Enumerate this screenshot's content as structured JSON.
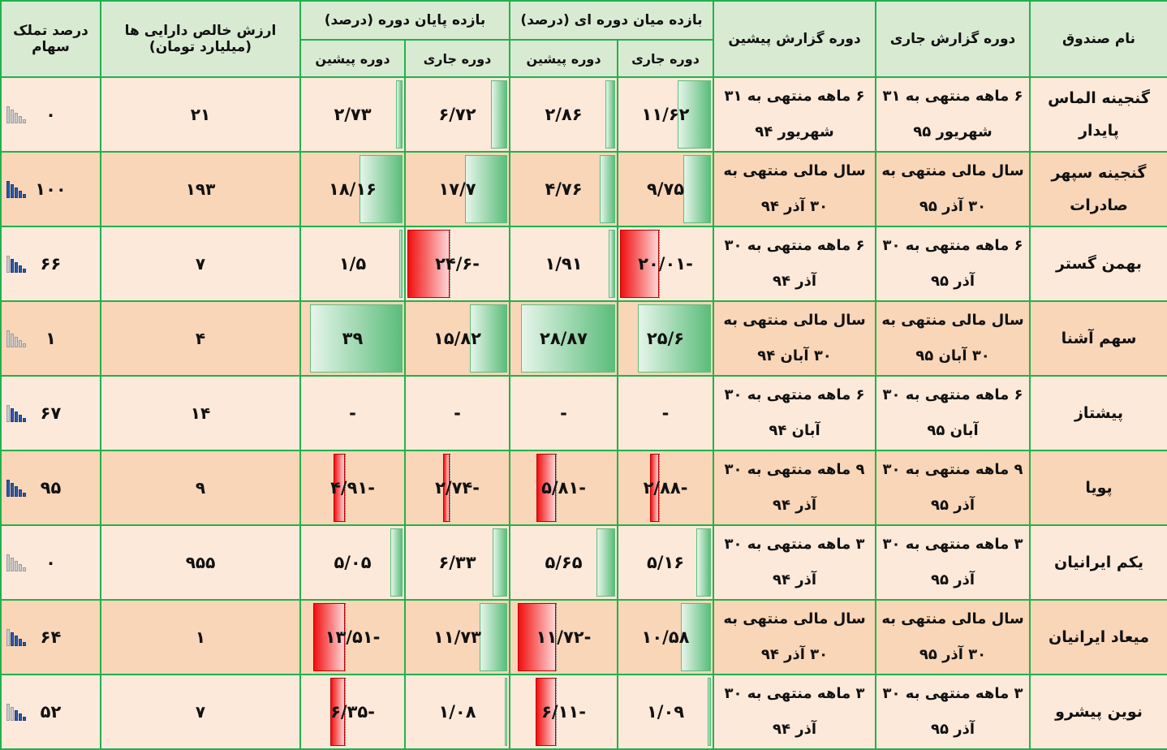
{
  "headers": {
    "fund_name": "نام صندوق",
    "current_period": "دوره گزارش جاری",
    "previous_period": "دوره گزارش پیشین",
    "interim_return": "بازده میان دوره ای (درصد)",
    "end_return": "بازده پایان دوره (درصد)",
    "current": "دوره جاری",
    "previous": "دوره پیشین",
    "nav": "ارزش خالص دارایی ها (میلیارد تومان)",
    "stock_ownership": "درصد تملک سهام"
  },
  "colors": {
    "grid": "#22b14c",
    "header_bg": "#d9ead3",
    "row_light": "#fce9da",
    "row_dark": "#f9d6b8",
    "positive_bar": "#5bbd7b",
    "negative_bar": "#f01010"
  },
  "rows": [
    {
      "name": "گنجینه الماس پایدار",
      "cur_period": "۶ ماهه منتهی به ۳۱ شهریور ۹۵",
      "prev_period": "۶ ماهه منتهی به ۳۱ شهریور ۹۴",
      "mid_cur": "۱۱/۶۲",
      "mid_cur_v": 11.62,
      "mid_prev": "۲/۸۶",
      "mid_prev_v": 2.86,
      "end_cur": "۶/۷۲",
      "end_cur_v": 6.72,
      "end_prev": "۲/۷۳",
      "end_prev_v": 2.73,
      "nav": "۲۱",
      "own": "۰",
      "own_level": 0
    },
    {
      "name": "گنجینه سپهر صادرات",
      "cur_period": "سال مالی منتهی به ۳۰ آذر ۹۵",
      "prev_period": "سال مالی منتهی به ۳۰ آذر ۹۴",
      "mid_cur": "۹/۷۵",
      "mid_cur_v": 9.75,
      "mid_prev": "۴/۷۶",
      "mid_prev_v": 4.76,
      "end_cur": "۱۷/۷",
      "end_cur_v": 17.7,
      "end_prev": "۱۸/۱۶",
      "end_prev_v": 18.16,
      "nav": "۱۹۳",
      "own": "۱۰۰",
      "own_level": 5
    },
    {
      "name": "بهمن گستر",
      "cur_period": "۶ ماهه منتهی به ۳۰ آذر ۹۵",
      "prev_period": "۶ ماهه منتهی به ۳۰ آذر ۹۴",
      "mid_cur": "-۲۰/۰۱",
      "mid_cur_v": -20.01,
      "mid_prev": "۱/۹۱",
      "mid_prev_v": 1.91,
      "end_cur": "-۲۴/۶",
      "end_cur_v": -24.6,
      "end_prev": "۱/۵",
      "end_prev_v": 1.5,
      "nav": "۷",
      "own": "۶۶",
      "own_level": 4
    },
    {
      "name": "سهم آشنا",
      "cur_period": "سال مالی منتهی به ۳۰ آبان ۹۵",
      "prev_period": "سال مالی منتهی به ۳۰ آبان ۹۴",
      "mid_cur": "۲۵/۶",
      "mid_cur_v": 25.6,
      "mid_prev": "۲۸/۸۷",
      "mid_prev_v": 28.87,
      "end_cur": "۱۵/۸۲",
      "end_cur_v": 15.82,
      "end_prev": "۳۹",
      "end_prev_v": 39,
      "nav": "۴",
      "own": "۱",
      "own_level": 0
    },
    {
      "name": "پیشتاز",
      "cur_period": "۶ ماهه منتهی به ۳۰ آبان ۹۵",
      "prev_period": "۶ ماهه منتهی به ۳۰ آبان ۹۴",
      "mid_cur": "-",
      "mid_cur_v": 0,
      "mid_prev": "-",
      "mid_prev_v": 0,
      "end_cur": "-",
      "end_cur_v": 0,
      "end_prev": "-",
      "end_prev_v": 0,
      "nav": "۱۴",
      "own": "۶۷",
      "own_level": 4
    },
    {
      "name": "پویا",
      "cur_period": "۹ ماهه منتهی به ۳۰ آذر ۹۵",
      "prev_period": "۹ ماهه منتهی به ۳۰ آذر ۹۴",
      "mid_cur": "-۲/۸۸",
      "mid_cur_v": -2.88,
      "mid_prev": "-۵/۸۱",
      "mid_prev_v": -5.81,
      "end_cur": "-۲/۷۴",
      "end_cur_v": -2.74,
      "end_prev": "-۴/۹۱",
      "end_prev_v": -4.91,
      "nav": "۹",
      "own": "۹۵",
      "own_level": 5
    },
    {
      "name": "یکم ایرانیان",
      "cur_period": "۳ ماهه منتهی به ۳۰ آذر ۹۵",
      "prev_period": "۳ ماهه منتهی به ۳۰ آذر ۹۴",
      "mid_cur": "۵/۱۶",
      "mid_cur_v": 5.16,
      "mid_prev": "۵/۶۵",
      "mid_prev_v": 5.65,
      "end_cur": "۶/۳۳",
      "end_cur_v": 6.33,
      "end_prev": "۵/۰۵",
      "end_prev_v": 5.05,
      "nav": "۹۵۵",
      "own": "۰",
      "own_level": 0
    },
    {
      "name": "میعاد ایرانیان",
      "cur_period": "سال مالی منتهی به ۳۰ آذر ۹۵",
      "prev_period": "سال مالی منتهی به ۳۰ آذر ۹۴",
      "mid_cur": "۱۰/۵۸",
      "mid_cur_v": 10.58,
      "mid_prev": "-۱۱/۷۲",
      "mid_prev_v": -11.72,
      "end_cur": "۱۱/۷۳",
      "end_cur_v": 11.73,
      "end_prev": "-۱۳/۵۱",
      "end_prev_v": -13.51,
      "nav": "۱",
      "own": "۶۴",
      "own_level": 4
    },
    {
      "name": "نوین پیشرو",
      "cur_period": "۳ ماهه منتهی به ۳۰ آذر ۹۵",
      "prev_period": "۳ ماهه منتهی به ۳۰ آذر ۹۴",
      "mid_cur": "۱/۰۹",
      "mid_cur_v": 1.09,
      "mid_prev": "-۶/۱۱",
      "mid_prev_v": -6.11,
      "end_cur": "۱/۰۸",
      "end_cur_v": 1.08,
      "end_prev": "-۶/۳۵",
      "end_prev_v": -6.35,
      "nav": "۷",
      "own": "۵۲",
      "own_level": 3
    }
  ]
}
